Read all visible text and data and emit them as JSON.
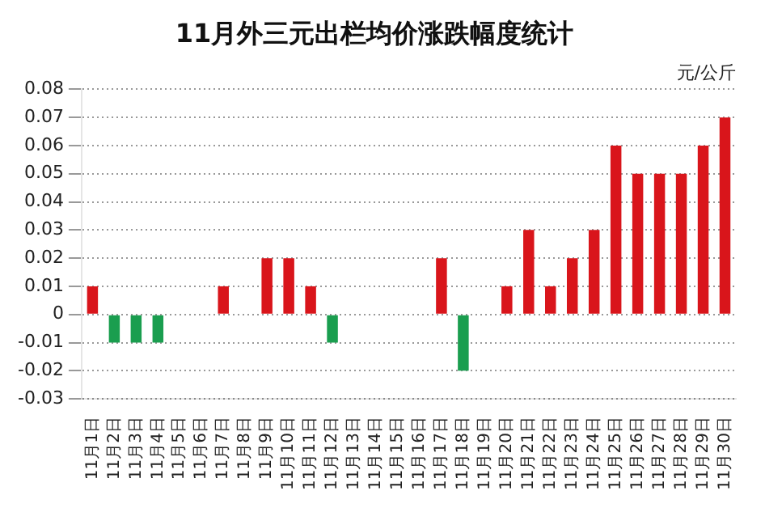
{
  "chart_data": {
    "type": "bar",
    "title": "11月外三元出栏均价涨跌幅度统计",
    "ylabel": "元/公斤",
    "categories": [
      "11月1日",
      "11月2日",
      "11月3日",
      "11月4日",
      "11月5日",
      "11月6日",
      "11月7日",
      "11月8日",
      "11月9日",
      "11月10日",
      "11月11日",
      "11月12日",
      "11月13日",
      "11月14日",
      "11月15日",
      "11月16日",
      "11月17日",
      "11月18日",
      "11月19日",
      "11月20日",
      "11月21日",
      "11月22日",
      "11月23日",
      "11月24日",
      "11月25日",
      "11月26日",
      "11月27日",
      "11月28日",
      "11月29日",
      "11月30日"
    ],
    "values": [
      0.01,
      -0.01,
      -0.01,
      -0.01,
      0,
      0,
      0.01,
      0,
      0.02,
      0.02,
      0.01,
      -0.01,
      0,
      0,
      0,
      0,
      0.02,
      -0.02,
      0,
      0.01,
      0.03,
      0.01,
      0.02,
      0.03,
      0.06,
      0.05,
      0.05,
      0.05,
      0.06,
      0.07
    ],
    "colors": [
      "#d9151b",
      "#1a9e4f",
      "#1a9e4f",
      "#1a9e4f",
      "#d9151b",
      "#d9151b",
      "#d9151b",
      "#d9151b",
      "#d9151b",
      "#d9151b",
      "#d9151b",
      "#1a9e4f",
      "#d9151b",
      "#d9151b",
      "#d9151b",
      "#d9151b",
      "#d9151b",
      "#1a9e4f",
      "#d9151b",
      "#d9151b",
      "#d9151b",
      "#d9151b",
      "#d9151b",
      "#d9151b",
      "#d9151b",
      "#d9151b",
      "#d9151b",
      "#d9151b",
      "#d9151b",
      "#d9151b"
    ],
    "ylim": [
      -0.03,
      0.08
    ],
    "yticks": [
      0.08,
      0.07,
      0.06,
      0.05,
      0.04,
      0.03,
      0.02,
      0.01,
      0,
      -0.01,
      -0.02,
      -0.03
    ],
    "grid": "y",
    "legend": false
  }
}
